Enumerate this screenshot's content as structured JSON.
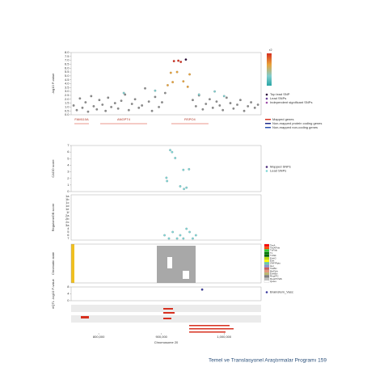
{
  "chart_data": [
    {
      "type": "scatter",
      "ylabel": "-log10 P-value",
      "colorbar_label": "r2",
      "xlim": [
        756000,
        1059000
      ],
      "ylim": [
        0,
        8
      ],
      "yticks": [
        {
          "value": 0,
          "label": "0.0"
        },
        {
          "value": 0.5,
          "label": "0.5"
        },
        {
          "value": 1,
          "label": "1.0"
        },
        {
          "value": 1.5,
          "label": "1.5"
        },
        {
          "value": 2,
          "label": "2.0"
        },
        {
          "value": 2.5,
          "label": "2.5"
        },
        {
          "value": 3,
          "label": "3.0"
        },
        {
          "value": 3.5,
          "label": "3.5"
        },
        {
          "value": 4,
          "label": "4.0"
        },
        {
          "value": 4.5,
          "label": "4.5"
        },
        {
          "value": 5,
          "label": "5.0"
        },
        {
          "value": 5.5,
          "label": "5.5"
        },
        {
          "value": 6,
          "label": "6.0"
        },
        {
          "value": 6.5,
          "label": "6.5"
        },
        {
          "value": 7,
          "label": "7.0"
        },
        {
          "value": 7.5,
          "label": "7.5"
        },
        {
          "value": 8,
          "label": "8.0"
        }
      ],
      "legend": [
        {
          "name": "Top lead SNP",
          "color": "#2d0a3a"
        },
        {
          "name": "Lead SNPs",
          "color": "#6a3d9a"
        },
        {
          "name": "Independent significant SNPs",
          "color": "#9e4fa8"
        }
      ],
      "series": [
        {
          "color": "#8a8a8a",
          "x": [
            760000,
            765000,
            770000,
            774000,
            779000,
            783000,
            788000,
            792000,
            797000,
            801000,
            806000,
            811000,
            815000,
            820000,
            826000,
            831000,
            836000,
            842000,
            848000,
            853000,
            858000,
            864000,
            869000,
            874000,
            880000,
            885000,
            890000,
            896000,
            901000,
            906000,
            950000,
            955000,
            960000,
            966000,
            971000,
            977000,
            982000,
            988000,
            993000,
            998000,
            1004000,
            1010000,
            1015000,
            1021000,
            1026000,
            1032000,
            1038000,
            1043000,
            1049000,
            1054000
          ],
          "values": [
            1.2,
            0.6,
            2.1,
            0.9,
            1.6,
            0.4,
            2.4,
            1.1,
            0.7,
            1.9,
            1.3,
            0.5,
            2.2,
            1.0,
            1.5,
            0.8,
            1.8,
            2.6,
            0.6,
            1.4,
            2.0,
            0.9,
            1.2,
            3.4,
            1.7,
            0.5,
            2.3,
            1.0,
            1.6,
            2.8,
            1.9,
            1.1,
            2.5,
            0.7,
            1.4,
            2.0,
            0.9,
            1.7,
            1.2,
            0.6,
            2.2,
            1.5,
            0.8,
            1.3,
            1.9,
            0.5,
            1.1,
            1.6,
            0.9,
            1.3
          ]
        },
        {
          "color": "#7fcdcd",
          "x": [
            840000,
            890000,
            960000,
            985000,
            1000000
          ],
          "values": [
            2.8,
            3.1,
            2.6,
            3.0,
            2.4
          ]
        },
        {
          "color": "#e8a33a",
          "x": [
            910000,
            915000,
            918000,
            925000,
            935000,
            942000,
            945000
          ],
          "values": [
            3.8,
            5.4,
            4.2,
            5.5,
            4.3,
            3.6,
            5.2
          ]
        },
        {
          "color": "#d7301f",
          "x": [
            920000,
            927000,
            931000
          ],
          "values": [
            6.9,
            6.95,
            6.8
          ]
        },
        {
          "color": "#2d0a3a",
          "x": [
            939000
          ],
          "values": [
            7.1
          ]
        }
      ],
      "genes": [
        {
          "name": "FAM110A",
          "start": 761156,
          "end": 784358
        },
        {
          "name": "ANGPT4",
          "start": 802404,
          "end": 877166
        },
        {
          "name": "RSPO4",
          "start": 915836,
          "end": 975130
        }
      ],
      "gene_legend": [
        {
          "name": "Mapped genes",
          "color": "#d7301f"
        },
        {
          "name": "Non-mapped protein coding genes",
          "color": "#1f2d8a"
        },
        {
          "name": "Non-mapped non-coding genes",
          "color": "#2a4fb0"
        }
      ]
    },
    {
      "type": "scatter",
      "ylabel": "CADD score",
      "xlim": [
        756000,
        1059000
      ],
      "ylim": [
        0,
        7
      ],
      "yticks": [
        0,
        1,
        2,
        3,
        4,
        5,
        6,
        7
      ],
      "legend": [
        {
          "name": "Mapped SNPs",
          "color": "#4b2a7a"
        },
        {
          "name": "Lead SNPs",
          "color": "#7fd6d6"
        }
      ],
      "series": [
        {
          "color": "#7fd6d6",
          "x": [
            908000,
            909000,
            914000,
            917000,
            922000,
            930000,
            935000,
            936000,
            940000,
            944000
          ],
          "values": [
            2.1,
            1.6,
            6.3,
            6.0,
            5.1,
            0.8,
            3.3,
            0.4,
            0.6,
            3.4
          ]
        }
      ]
    },
    {
      "type": "category-scatter",
      "ylabel": "RegulomeDB score",
      "xlim": [
        756000,
        1059000
      ],
      "ycategories": [
        "7",
        "6",
        "5",
        "4",
        "3a",
        "2c",
        "2b",
        "2a",
        "1f",
        "1e",
        "1d",
        "1c",
        "1b",
        "1a"
      ],
      "series": [
        {
          "color": "#7fd6d6",
          "x": [
            905000,
            912000,
            918000,
            925000,
            930000,
            935000,
            940000,
            945000,
            950000,
            955000
          ],
          "values": [
            "6",
            "7",
            "5",
            "7",
            "6",
            "7",
            "4",
            "5",
            "7",
            "6"
          ]
        }
      ]
    },
    {
      "type": "chromatin",
      "ylabel": "Chromatin state",
      "states": [
        {
          "name": "TssA",
          "color": "#ff0000"
        },
        {
          "name": "TssAFlnk",
          "color": "#ff4500"
        },
        {
          "name": "TxFlnk",
          "color": "#32cd32"
        },
        {
          "name": "Tx",
          "color": "#008000"
        },
        {
          "name": "TxWk",
          "color": "#006400"
        },
        {
          "name": "EnhG",
          "color": "#c2e105"
        },
        {
          "name": "Enh",
          "color": "#ffff00"
        },
        {
          "name": "ZNF/Rpts",
          "color": "#66cdaa"
        },
        {
          "name": "Het",
          "color": "#8a91d0"
        },
        {
          "name": "TssBiv",
          "color": "#cd5c5c"
        },
        {
          "name": "BivFlnk",
          "color": "#e9967a"
        },
        {
          "name": "EnhBiv",
          "color": "#bdb76b"
        },
        {
          "name": "ReprPC",
          "color": "#808080"
        },
        {
          "name": "ReprPCWk",
          "color": "#c0c0c0"
        },
        {
          "name": "Quies",
          "color": "#ffffff"
        }
      ]
    },
    {
      "type": "scatter",
      "ylabel": "eQTL -log10 P-value",
      "xlim": [
        756000,
        1059000
      ],
      "ylim": [
        0,
        8
      ],
      "yticks": [
        0,
        4,
        8
      ],
      "legend": [
        {
          "name": "Brainstem_Vasc",
          "color": "#3b3b9e"
        }
      ],
      "series": [
        {
          "color": "#3b3b9e",
          "x": [
            965000
          ],
          "values": [
            6.5
          ]
        }
      ],
      "xlabel": "Chromosome 20",
      "xticks": [
        {
          "value": 800000,
          "label": "800,000"
        },
        {
          "value": 900000,
          "label": "900,000"
        },
        {
          "value": 1000000,
          "label": "1,000,000"
        }
      ]
    }
  ],
  "footer": "Temel ve Translasyonel Araştırmalar Programı 159"
}
